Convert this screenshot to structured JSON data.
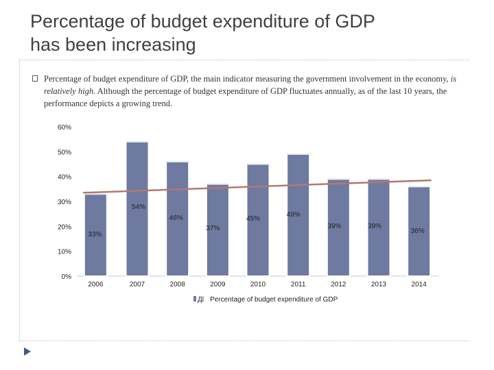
{
  "slide": {
    "title_line1": "Percentage of budget expenditure of GDP",
    "title_line2": "has been increasing",
    "body_part1": "Percentage of budget expenditure of GDP, the main indicator measuring the government involvement in the economy, ",
    "body_italic": "is relatively high.",
    "body_part2": "  Although the percentage of budget expenditure of GDP fluctuates annually, as of the last 10 years, the performance depicts a growing trend.",
    "nav_icon": "triangle-right-icon"
  },
  "chart_data": {
    "type": "bar",
    "title": "",
    "categories": [
      "2006",
      "2007",
      "2008",
      "2009",
      "2010",
      "2011",
      "2012",
      "2013",
      "2014"
    ],
    "series": [
      {
        "name": "Percentage of budget expenditure of GDP",
        "values": [
          33,
          54,
          46,
          37,
          45,
          49,
          39,
          39,
          36
        ],
        "labels": [
          "33%",
          "54%",
          "46%",
          "37%",
          "45%",
          "49%",
          "39%",
          "39%",
          "36%"
        ],
        "color": "#6e7aa0"
      }
    ],
    "trendline": {
      "type": "linear",
      "color": "#b07a6e",
      "start": 33.5,
      "end": 38.5
    },
    "yticks": [
      "60%",
      "50%",
      "40%",
      "30%",
      "20%",
      "10%",
      "0%"
    ],
    "ylim": [
      0,
      60
    ],
    "legend_marker_text": "Дl",
    "legend": "bottom"
  }
}
